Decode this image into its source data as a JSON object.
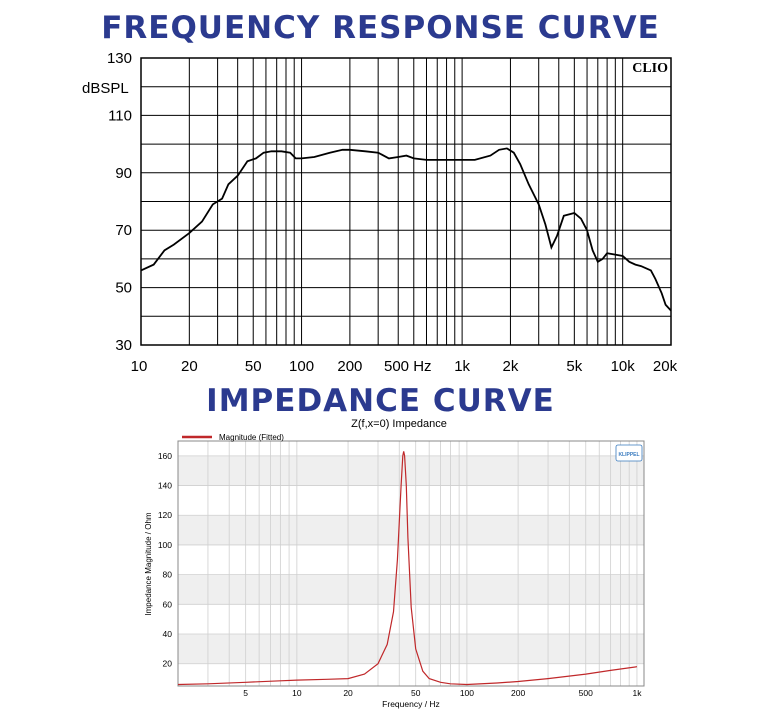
{
  "chart_data": [
    {
      "type": "line",
      "title": "FREQUENCY RESPONSE CURVE",
      "watermark": "CLIO",
      "ylabel": "dBSPL",
      "xlabel": "",
      "xscale": "log",
      "xlim": [
        10,
        20000
      ],
      "ylim": [
        30,
        130
      ],
      "grid": true,
      "x_ticks": [
        {
          "v": 10,
          "label": "10"
        },
        {
          "v": 20,
          "label": "20"
        },
        {
          "v": 50,
          "label": "50"
        },
        {
          "v": 100,
          "label": "100"
        },
        {
          "v": 200,
          "label": "200"
        },
        {
          "v": 500,
          "label": "500 Hz"
        },
        {
          "v": 1000,
          "label": "1k"
        },
        {
          "v": 2000,
          "label": "2k"
        },
        {
          "v": 5000,
          "label": "5k"
        },
        {
          "v": 10000,
          "label": "10k"
        },
        {
          "v": 20000,
          "label": "20k"
        }
      ],
      "y_ticks": [
        {
          "v": 130,
          "label": "130"
        },
        {
          "v": 110,
          "label": "110"
        },
        {
          "v": 90,
          "label": "90"
        },
        {
          "v": 70,
          "label": "70"
        },
        {
          "v": 50,
          "label": "50"
        },
        {
          "v": 30,
          "label": "30"
        }
      ],
      "series": [
        {
          "color": "#000000",
          "x": [
            10,
            12,
            14,
            16,
            20,
            24,
            28,
            32,
            35,
            40,
            46,
            52,
            58,
            65,
            75,
            85,
            92,
            100,
            120,
            150,
            180,
            200,
            250,
            300,
            350,
            400,
            450,
            500,
            600,
            800,
            1000,
            1200,
            1500,
            1700,
            1900,
            2100,
            2300,
            2600,
            3000,
            3300,
            3600,
            3900,
            4300,
            5000,
            5500,
            6000,
            6500,
            7000,
            7500,
            8000,
            9000,
            10000,
            11000,
            12000,
            13000,
            15000,
            16000,
            17500,
            18500,
            20000
          ],
          "y": [
            56,
            58,
            63,
            65,
            69,
            73,
            79,
            81,
            86,
            89,
            94,
            95,
            97,
            97.5,
            97.5,
            97,
            95,
            95,
            95.5,
            97,
            98,
            98,
            97.5,
            97,
            95,
            95.5,
            96,
            95,
            94.5,
            94.5,
            94.5,
            94.5,
            96,
            98,
            98.5,
            97,
            93,
            86,
            79,
            72,
            64,
            68,
            75,
            76,
            74,
            70,
            63,
            59,
            60,
            62,
            61.5,
            61,
            59,
            58,
            57.5,
            56,
            53,
            48,
            44,
            42
          ]
        }
      ]
    },
    {
      "type": "line",
      "title": "IMPEDANCE CURVE",
      "subtitle": "Z(f,x=0) Impedance",
      "logo": "KLIPPEL",
      "xlabel": "Frequency / Hz",
      "ylabel": "Impedance Magnitude / Ohm",
      "xscale": "log",
      "xlim": [
        2,
        1100
      ],
      "ylim": [
        5,
        170
      ],
      "grid": true,
      "x_ticks": [
        {
          "v": 5,
          "label": "5"
        },
        {
          "v": 10,
          "label": "10"
        },
        {
          "v": 20,
          "label": "20"
        },
        {
          "v": 50,
          "label": "50"
        },
        {
          "v": 100,
          "label": "100"
        },
        {
          "v": 200,
          "label": "200"
        },
        {
          "v": 500,
          "label": "500"
        },
        {
          "v": 1000,
          "label": "1k"
        }
      ],
      "y_ticks": [
        {
          "v": 20,
          "label": "20"
        },
        {
          "v": 40,
          "label": "40"
        },
        {
          "v": 60,
          "label": "60"
        },
        {
          "v": 80,
          "label": "80"
        },
        {
          "v": 100,
          "label": "100"
        },
        {
          "v": 120,
          "label": "120"
        },
        {
          "v": 140,
          "label": "140"
        },
        {
          "v": 160,
          "label": "160"
        }
      ],
      "legend": "top-left",
      "series": [
        {
          "name": "Magnitude (Fitted)",
          "color": "#c0282a",
          "x": [
            2,
            3,
            5,
            8,
            10,
            15,
            20,
            25,
            30,
            34,
            37,
            39,
            41,
            42,
            42.5,
            43,
            44,
            45,
            47,
            50,
            55,
            60,
            70,
            80,
            100,
            150,
            200,
            300,
            500,
            700,
            1000
          ],
          "y": [
            6,
            6.5,
            7.5,
            8.5,
            9,
            9.5,
            10,
            13,
            20,
            33,
            55,
            90,
            140,
            160,
            163,
            160,
            140,
            105,
            58,
            30,
            15,
            10,
            7.5,
            6.5,
            6,
            7,
            8,
            10,
            13,
            15.5,
            18
          ]
        }
      ]
    }
  ]
}
